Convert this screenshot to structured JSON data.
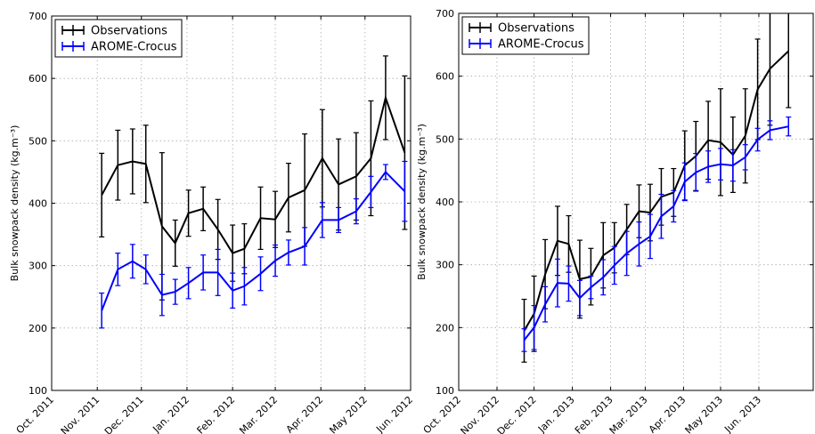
{
  "chart_data": [
    {
      "type": "line",
      "ylabel": "Bulk snowpack density (kg.m⁻³)",
      "ylim": [
        100,
        700
      ],
      "yticks": [
        100,
        200,
        300,
        400,
        500,
        600,
        700
      ],
      "xlim": [
        "2011-10-01",
        "2012-06-01"
      ],
      "xtick_labels": [
        "Oct. 2011",
        "Nov. 2011",
        "Dec. 2011",
        "Jan. 2012",
        "Feb. 2012",
        "Mar. 2012",
        "Apr. 2012",
        "May 2012",
        "Jun. 2012"
      ],
      "grid": true,
      "legend": "top-left",
      "x": [
        "2011-11-04",
        "2011-11-15",
        "2011-11-25",
        "2011-12-04",
        "2011-12-15",
        "2011-12-24",
        "2012-01-02",
        "2012-01-12",
        "2012-01-22",
        "2012-02-01",
        "2012-02-09",
        "2012-02-20",
        "2012-03-01",
        "2012-03-10",
        "2012-03-21",
        "2012-04-02",
        "2012-04-13",
        "2012-04-25",
        "2012-05-05",
        "2012-05-15",
        "2012-05-28"
      ],
      "series": [
        {
          "name": "Observations",
          "color": "#000000",
          "values": [
            413,
            461,
            467,
            463,
            363,
            336,
            384,
            391,
            358,
            320,
            327,
            376,
            374,
            409,
            421,
            472,
            430,
            443,
            472,
            569,
            481
          ],
          "errors": [
            67,
            56,
            52,
            62,
            118,
            37,
            37,
            35,
            48,
            45,
            40,
            50,
            45,
            55,
            90,
            78,
            73,
            70,
            92,
            67,
            123
          ]
        },
        {
          "name": "AROME-Crocus",
          "color": "#0000ff",
          "values": [
            228,
            294,
            307,
            294,
            253,
            258,
            272,
            289,
            289,
            260,
            267,
            287,
            308,
            321,
            331,
            373,
            373,
            387,
            418,
            450,
            419
          ],
          "errors": [
            28,
            26,
            27,
            23,
            33,
            20,
            25,
            28,
            37,
            28,
            30,
            27,
            25,
            20,
            30,
            28,
            20,
            20,
            25,
            12,
            48
          ]
        }
      ]
    },
    {
      "type": "line",
      "ylabel": "Bulk snowpack density (kg.m⁻³)",
      "ylim": [
        100,
        700
      ],
      "yticks": [
        100,
        200,
        300,
        400,
        500,
        600,
        700
      ],
      "xlim": [
        "2012-10-01",
        "2013-07-15"
      ],
      "xtick_labels": [
        "Oct. 2012",
        "Nov. 2012",
        "Dec. 2012",
        "Jan. 2013",
        "Feb. 2013",
        "Mar. 2013",
        "Apr. 2013",
        "May 2013",
        "Jun. 2013"
      ],
      "grid": true,
      "legend": "top-left",
      "x": [
        "2012-11-23",
        "2012-12-01",
        "2012-12-10",
        "2012-12-20",
        "2012-12-29",
        "2013-01-07",
        "2013-01-16",
        "2013-01-26",
        "2013-02-04",
        "2013-02-14",
        "2013-02-24",
        "2013-03-05",
        "2013-03-14",
        "2013-03-24",
        "2013-04-02",
        "2013-04-11",
        "2013-04-21",
        "2013-05-01",
        "2013-05-11",
        "2013-05-21",
        "2013-05-31",
        "2013-06-10",
        "2013-06-25"
      ],
      "series": [
        {
          "name": "Observations",
          "color": "#000000",
          "values": [
            195,
            222,
            285,
            338,
            333,
            277,
            281,
            315,
            327,
            356,
            385,
            383,
            408,
            415,
            458,
            473,
            498,
            495,
            475,
            505,
            579,
            612,
            640
          ],
          "errors": [
            50,
            60,
            55,
            55,
            45,
            62,
            45,
            52,
            40,
            40,
            42,
            45,
            45,
            38,
            55,
            55,
            62,
            85,
            60,
            75,
            80,
            90,
            90
          ]
        },
        {
          "name": "AROME-Crocus",
          "color": "#0000ff",
          "values": [
            180,
            200,
            237,
            271,
            270,
            247,
            264,
            280,
            299,
            318,
            333,
            345,
            377,
            393,
            432,
            447,
            456,
            460,
            458,
            471,
            499,
            514,
            520
          ],
          "errors": [
            18,
            35,
            28,
            38,
            28,
            28,
            18,
            28,
            30,
            35,
            35,
            35,
            35,
            25,
            30,
            30,
            25,
            25,
            25,
            20,
            18,
            15,
            15
          ]
        }
      ]
    }
  ]
}
